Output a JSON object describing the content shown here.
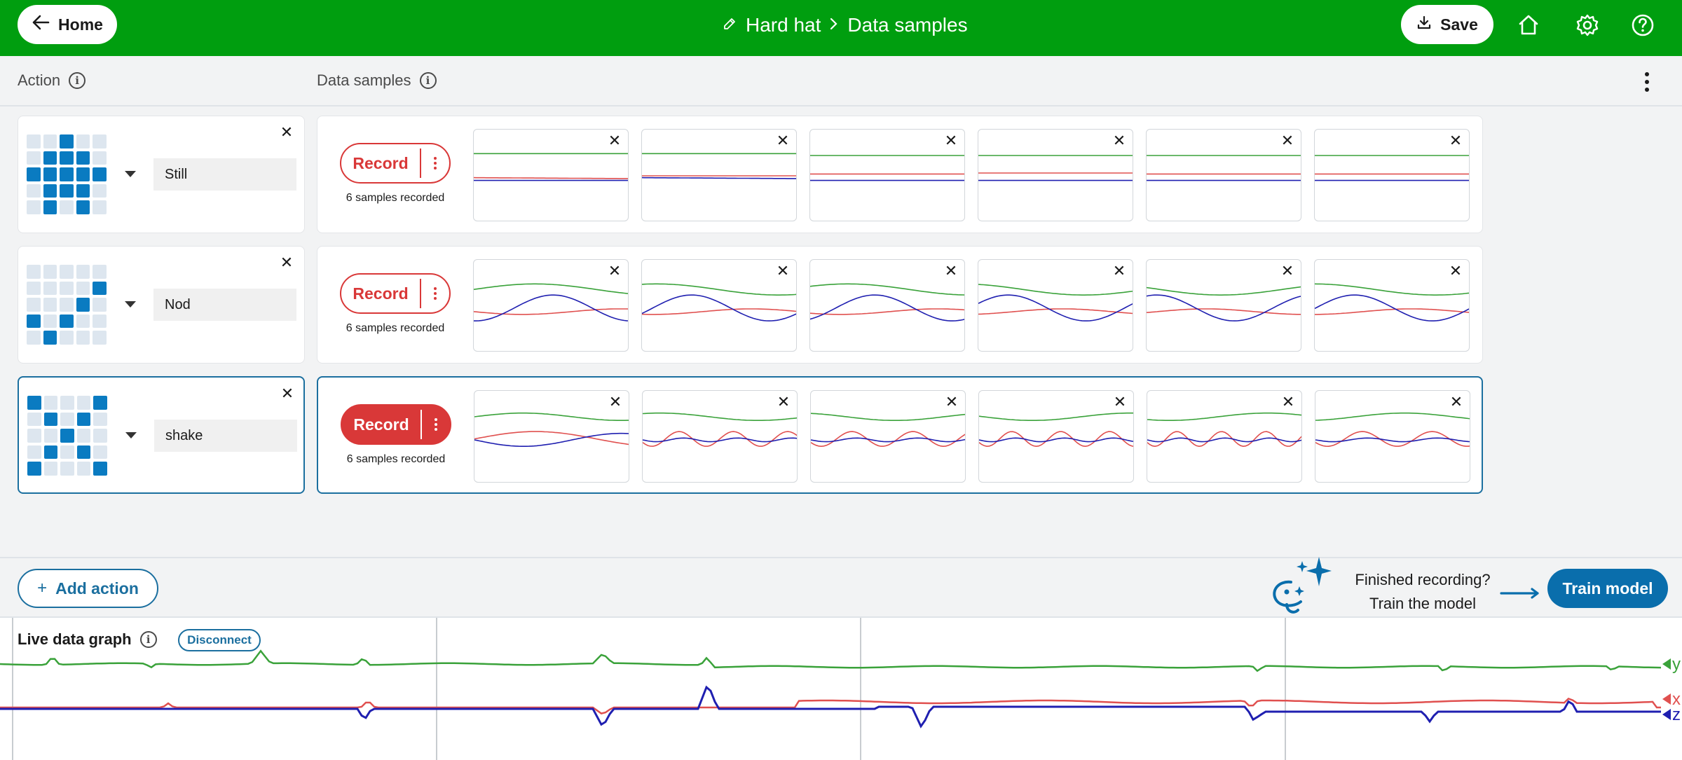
{
  "topbar": {
    "home_label": "Home",
    "breadcrumb_project": "Hard hat",
    "breadcrumb_page": "Data samples",
    "save_label": "Save",
    "bg_color": "#009e0f"
  },
  "header": {
    "action_label": "Action",
    "data_samples_label": "Data samples"
  },
  "actions": [
    {
      "name": "Still",
      "icon_grid": [
        [
          0,
          0,
          1,
          0,
          0
        ],
        [
          0,
          1,
          1,
          1,
          0
        ],
        [
          1,
          1,
          1,
          1,
          1
        ],
        [
          0,
          1,
          1,
          1,
          0
        ],
        [
          0,
          1,
          0,
          1,
          0
        ]
      ],
      "record_label": "Record",
      "samples_text": "6 samples recorded",
      "samples": [
        {
          "y": [
            [
              0,
              0.26
            ],
            [
              1,
              0.26
            ]
          ],
          "x": [
            [
              0,
              0.52
            ],
            [
              1,
              0.53
            ]
          ],
          "z": [
            [
              0,
              0.55
            ],
            [
              1,
              0.55
            ]
          ]
        },
        {
          "y": [
            [
              0,
              0.26
            ],
            [
              1,
              0.26
            ]
          ],
          "x": [
            [
              0,
              0.5
            ],
            [
              1,
              0.5
            ]
          ],
          "z": [
            [
              0,
              0.52
            ],
            [
              1,
              0.53
            ]
          ]
        },
        {
          "y": [
            [
              0,
              0.28
            ],
            [
              1,
              0.28
            ]
          ],
          "x": [
            [
              0,
              0.48
            ],
            [
              1,
              0.48
            ]
          ],
          "z": [
            [
              0,
              0.55
            ],
            [
              1,
              0.55
            ]
          ]
        },
        {
          "y": [
            [
              0,
              0.28
            ],
            [
              1,
              0.28
            ]
          ],
          "x": [
            [
              0,
              0.47
            ],
            [
              1,
              0.47
            ]
          ],
          "z": [
            [
              0,
              0.55
            ],
            [
              1,
              0.55
            ]
          ]
        },
        {
          "y": [
            [
              0,
              0.28
            ],
            [
              1,
              0.28
            ]
          ],
          "x": [
            [
              0,
              0.48
            ],
            [
              1,
              0.48
            ]
          ],
          "z": [
            [
              0,
              0.55
            ],
            [
              1,
              0.55
            ]
          ]
        },
        {
          "y": [
            [
              0,
              0.28
            ],
            [
              1,
              0.28
            ]
          ],
          "x": [
            [
              0,
              0.48
            ],
            [
              1,
              0.48
            ]
          ],
          "z": [
            [
              0,
              0.55
            ],
            [
              1,
              0.55
            ]
          ]
        }
      ]
    },
    {
      "name": "Nod",
      "icon_grid": [
        [
          0,
          0,
          0,
          0,
          0
        ],
        [
          0,
          0,
          0,
          0,
          1
        ],
        [
          0,
          0,
          0,
          1,
          0
        ],
        [
          1,
          0,
          1,
          0,
          0
        ],
        [
          0,
          1,
          0,
          0,
          0
        ]
      ],
      "record_label": "Record",
      "samples_text": "6 samples recorded",
      "samples": "wave-nod"
    },
    {
      "name": "shake",
      "icon_grid": [
        [
          1,
          0,
          0,
          0,
          1
        ],
        [
          0,
          1,
          0,
          1,
          0
        ],
        [
          0,
          0,
          1,
          0,
          0
        ],
        [
          0,
          1,
          0,
          1,
          0
        ],
        [
          1,
          0,
          0,
          0,
          1
        ]
      ],
      "record_label": "Record",
      "samples_text": "6 samples recorded",
      "samples": "wave-shake",
      "selected": true
    }
  ],
  "bottom": {
    "add_action_label": "Add action",
    "finished_line1": "Finished recording?",
    "finished_line2": "Train the model",
    "train_label": "Train model"
  },
  "live": {
    "title": "Live data graph",
    "disconnect_label": "Disconnect",
    "axis_labels": {
      "y": "y",
      "x": "x",
      "z": "z"
    }
  },
  "colors": {
    "x": "#e0504f",
    "y": "#3aa23a",
    "z": "#1f1fb0",
    "accent": "#1b6f9f",
    "record": "#d93838"
  }
}
